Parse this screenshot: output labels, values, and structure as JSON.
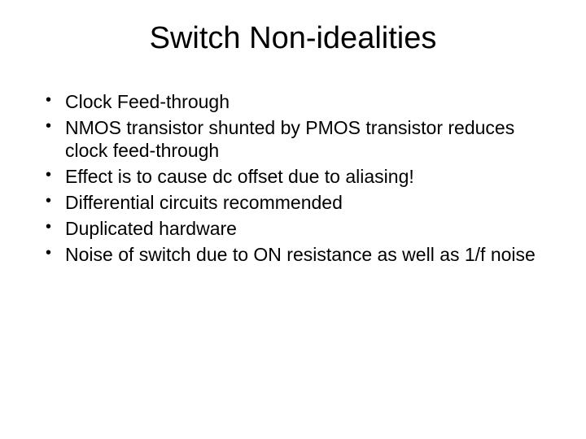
{
  "slide": {
    "title": "Switch Non-idealities",
    "bullets": [
      "Clock Feed-through",
      "NMOS transistor shunted by PMOS transistor reduces clock feed-through",
      "Effect is to cause dc offset due to aliasing!",
      "Differential circuits recommended",
      "Duplicated hardware",
      "Noise of switch due to ON resistance as well as 1/f  noise"
    ],
    "title_fontsize": 38,
    "body_fontsize": 23,
    "background_color": "#ffffff",
    "text_color": "#000000",
    "font_family": "Arial"
  }
}
